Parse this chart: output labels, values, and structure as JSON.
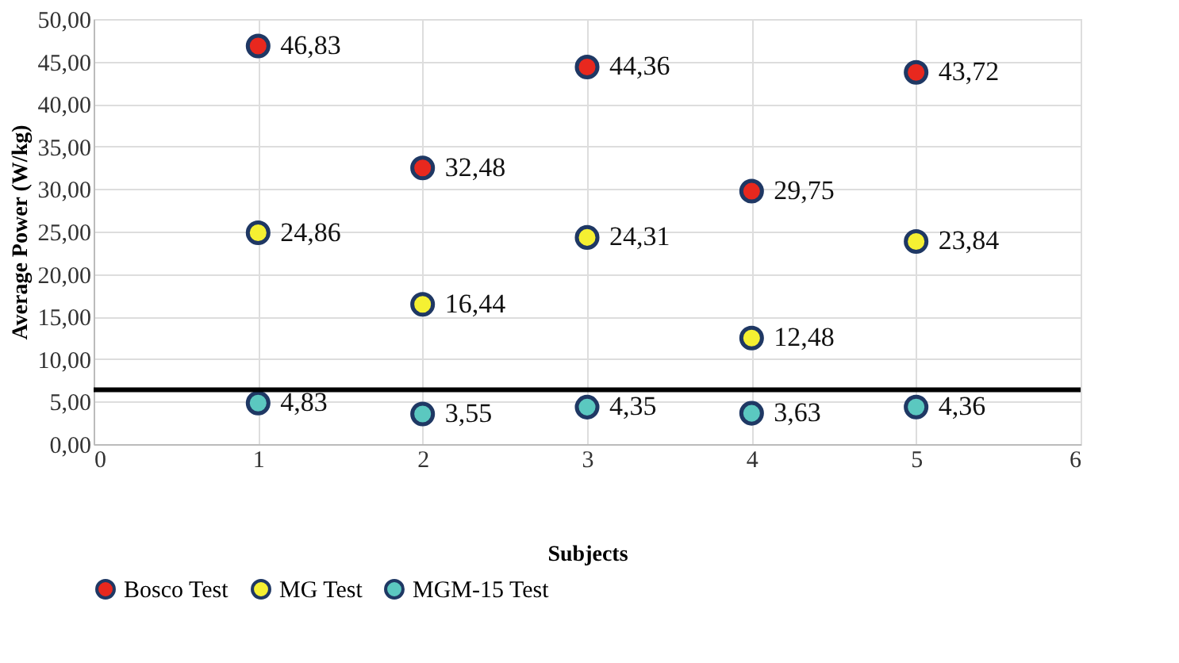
{
  "chart_data": {
    "type": "scatter",
    "xlabel": "Subjects",
    "ylabel": "Average Power (W/kg)",
    "x": [
      1,
      2,
      3,
      4,
      5
    ],
    "series": [
      {
        "name": "Bosco Test",
        "color": "#e8281e",
        "values": [
          46.83,
          32.48,
          44.36,
          29.75,
          43.72
        ],
        "value_labels": [
          "46,83",
          "32,48",
          "44,36",
          "29,75",
          "43,72"
        ]
      },
      {
        "name": "MG Test",
        "color": "#f5f032",
        "values": [
          24.86,
          16.44,
          24.31,
          12.48,
          23.84
        ],
        "value_labels": [
          "24,86",
          "16,44",
          "24,31",
          "12,48",
          "23,84"
        ]
      },
      {
        "name": "MGM-15 Test",
        "color": "#5bc8c0",
        "values": [
          4.83,
          3.55,
          4.35,
          3.63,
          4.36
        ],
        "value_labels": [
          "4,83",
          "3,55",
          "4,35",
          "3,63",
          "4,36"
        ]
      }
    ],
    "xlim": [
      0,
      6
    ],
    "xticks": [
      0,
      1,
      2,
      3,
      4,
      5,
      6
    ],
    "ylim": [
      0,
      50
    ],
    "yticks": [
      {
        "value": 0,
        "label": "0,00"
      },
      {
        "value": 5,
        "label": "5,00"
      },
      {
        "value": 10,
        "label": "10,00"
      },
      {
        "value": 15,
        "label": "15,00"
      },
      {
        "value": 20,
        "label": "20,00"
      },
      {
        "value": 25,
        "label": "25,00"
      },
      {
        "value": 30,
        "label": "30,00"
      },
      {
        "value": 35,
        "label": "35,00"
      },
      {
        "value": 40,
        "label": "40,00"
      },
      {
        "value": 45,
        "label": "45,00"
      },
      {
        "value": 50,
        "label": "50,00"
      }
    ],
    "ref_lines": [
      {
        "axis": "y",
        "value": 6.4,
        "color": "#000000"
      }
    ],
    "grid": true,
    "legend": "bottom",
    "marker": "circle"
  }
}
